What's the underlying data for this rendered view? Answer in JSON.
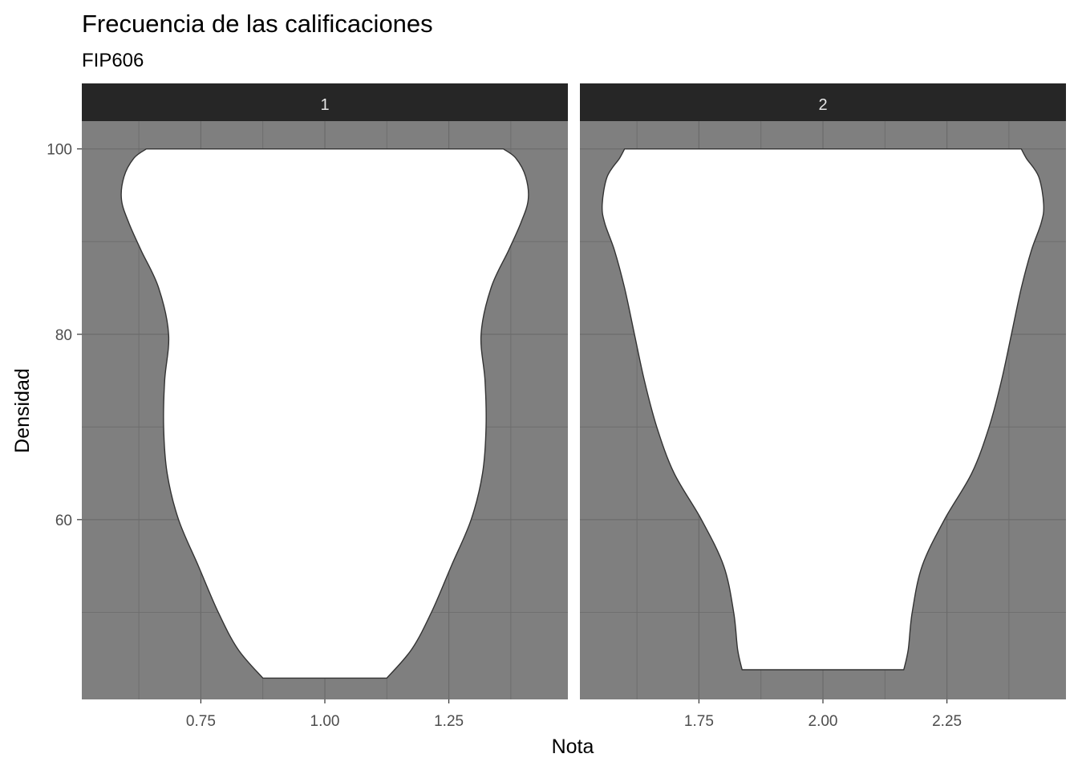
{
  "chart_data": {
    "type": "violin",
    "title": "Frecuencia de las calificaciones",
    "subtitle": "FIP606",
    "xlabel": "Nota",
    "ylabel": "Densidad",
    "ylim": [
      40.6,
      103
    ],
    "y_ticks": [
      60,
      80,
      100
    ],
    "y_tick_labels": [
      "60",
      "80",
      "100"
    ],
    "grid": true,
    "colors": {
      "panel_background": "#7f7f7f",
      "grid": "#6b6b6b",
      "strip_background": "#262626",
      "violin_fill": "#ffffff",
      "violin_outline": "#333333"
    },
    "facets": [
      {
        "label": "1",
        "center": 1.0,
        "xlim": [
          0.51,
          1.49
        ],
        "x_ticks": [
          0.75,
          1.0,
          1.25
        ],
        "x_tick_labels": [
          "0.75",
          "1.00",
          "1.25"
        ],
        "profile": [
          {
            "y": 42.9,
            "half_width": 0.125
          },
          {
            "y": 46,
            "half_width": 0.175
          },
          {
            "y": 50,
            "half_width": 0.215
          },
          {
            "y": 55,
            "half_width": 0.255
          },
          {
            "y": 60,
            "half_width": 0.295
          },
          {
            "y": 65,
            "half_width": 0.318
          },
          {
            "y": 70,
            "half_width": 0.325
          },
          {
            "y": 75,
            "half_width": 0.323
          },
          {
            "y": 80,
            "half_width": 0.315
          },
          {
            "y": 85,
            "half_width": 0.335
          },
          {
            "y": 89,
            "half_width": 0.37
          },
          {
            "y": 92,
            "half_width": 0.395
          },
          {
            "y": 94.5,
            "half_width": 0.41
          },
          {
            "y": 97,
            "half_width": 0.405
          },
          {
            "y": 99,
            "half_width": 0.385
          },
          {
            "y": 100,
            "half_width": 0.36
          }
        ]
      },
      {
        "label": "2",
        "center": 2.0,
        "xlim": [
          1.51,
          2.49
        ],
        "x_ticks": [
          1.75,
          2.0,
          2.25
        ],
        "x_tick_labels": [
          "1.75",
          "2.00",
          "2.25"
        ],
        "profile": [
          {
            "y": 43.8,
            "half_width": 0.163
          },
          {
            "y": 46,
            "half_width": 0.172
          },
          {
            "y": 50,
            "half_width": 0.18
          },
          {
            "y": 55,
            "half_width": 0.2
          },
          {
            "y": 60,
            "half_width": 0.245
          },
          {
            "y": 65,
            "half_width": 0.3
          },
          {
            "y": 70,
            "half_width": 0.335
          },
          {
            "y": 75,
            "half_width": 0.36
          },
          {
            "y": 80,
            "half_width": 0.38
          },
          {
            "y": 85,
            "half_width": 0.4
          },
          {
            "y": 89,
            "half_width": 0.42
          },
          {
            "y": 92,
            "half_width": 0.44
          },
          {
            "y": 94,
            "half_width": 0.445
          },
          {
            "y": 97,
            "half_width": 0.435
          },
          {
            "y": 99,
            "half_width": 0.41
          },
          {
            "y": 100,
            "half_width": 0.4
          }
        ]
      }
    ]
  }
}
